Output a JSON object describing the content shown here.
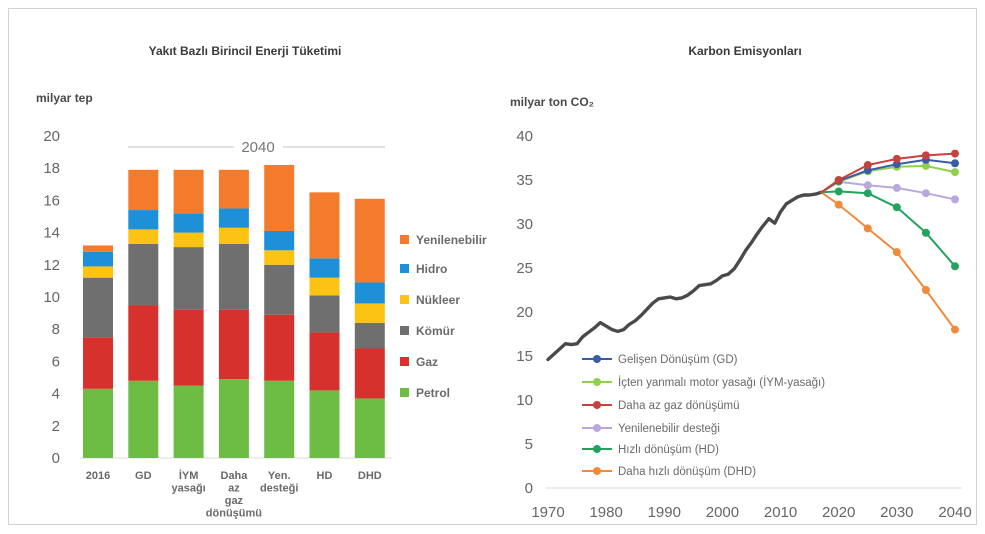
{
  "chart_data": [
    {
      "type": "bar",
      "stacked": true,
      "title": "Yakıt Bazlı Birincil Enerji Tüketimi",
      "ylabel": "milyar tep",
      "ylim": [
        0,
        20
      ],
      "yticks": [
        0,
        2,
        4,
        6,
        8,
        10,
        12,
        14,
        16,
        18,
        20
      ],
      "annotation": "2040",
      "legend_position": "right",
      "categories": [
        "2016",
        "GD",
        "İYM yasağı",
        "Daha az gaz dönüşümü",
        "Yen. desteği",
        "HD",
        "DHD"
      ],
      "series": [
        {
          "name": "Petrol",
          "color": "#6dbd45",
          "values": [
            4.3,
            4.8,
            4.5,
            4.9,
            4.8,
            4.2,
            3.7
          ]
        },
        {
          "name": "Gaz",
          "color": "#d7312d",
          "values": [
            3.2,
            4.7,
            4.7,
            4.3,
            4.1,
            3.6,
            3.1
          ]
        },
        {
          "name": "Kömür",
          "color": "#6f6f6f",
          "values": [
            3.7,
            3.8,
            3.9,
            4.1,
            3.1,
            2.3,
            1.6
          ]
        },
        {
          "name": "Nükleer",
          "color": "#fdc312",
          "values": [
            0.7,
            0.9,
            0.9,
            1.0,
            0.9,
            1.1,
            1.2
          ]
        },
        {
          "name": "Hidro",
          "color": "#1e90d8",
          "values": [
            0.9,
            1.2,
            1.2,
            1.2,
            1.2,
            1.2,
            1.3
          ]
        },
        {
          "name": "Yenilenebilir",
          "color": "#f47b2c",
          "values": [
            0.4,
            2.5,
            2.7,
            2.4,
            4.1,
            4.1,
            5.2
          ]
        }
      ]
    },
    {
      "type": "line",
      "title": "Karbon Emisyonları",
      "ylabel": "milyar ton CO₂",
      "xlim": [
        1970,
        2040
      ],
      "ylim": [
        0,
        40
      ],
      "xticks": [
        1970,
        1980,
        1990,
        2000,
        2010,
        2020,
        2030,
        2040
      ],
      "yticks": [
        0,
        5,
        10,
        15,
        20,
        25,
        30,
        35,
        40
      ],
      "legend_position": "bottom-left",
      "series": [
        {
          "color": "#4a4a4a",
          "markers": false,
          "x": [
            1970,
            1971,
            1972,
            1973,
            1974,
            1975,
            1976,
            1977,
            1978,
            1979,
            1980,
            1981,
            1982,
            1983,
            1984,
            1985,
            1986,
            1987,
            1988,
            1989,
            1990,
            1991,
            1992,
            1993,
            1994,
            1995,
            1996,
            1997,
            1998,
            1999,
            2000,
            2001,
            2002,
            2003,
            2004,
            2005,
            2006,
            2007,
            2008,
            2009,
            2010,
            2011,
            2012,
            2013,
            2014,
            2015,
            2016,
            2017
          ],
          "y": [
            14.6,
            15.2,
            15.8,
            16.4,
            16.3,
            16.4,
            17.2,
            17.7,
            18.2,
            18.8,
            18.4,
            18.0,
            17.8,
            18.0,
            18.6,
            19.0,
            19.6,
            20.3,
            21.0,
            21.5,
            21.6,
            21.7,
            21.5,
            21.6,
            21.9,
            22.4,
            23.0,
            23.1,
            23.2,
            23.6,
            24.1,
            24.3,
            24.9,
            25.9,
            27.0,
            27.9,
            28.9,
            29.8,
            30.6,
            30.1,
            31.4,
            32.3,
            32.7,
            33.1,
            33.3,
            33.3,
            33.4,
            33.6
          ]
        },
        {
          "name": "Gelişen Dönüşüm (GD)",
          "color": "#3b5ba9",
          "markers": true,
          "x": [
            2017,
            2020,
            2025,
            2030,
            2035,
            2040
          ],
          "y": [
            33.6,
            34.9,
            36.1,
            36.8,
            37.3,
            36.9
          ]
        },
        {
          "name": "İçten yanmalı motor yasağı (İYM-yasağı)",
          "color": "#8fd14c",
          "markers": true,
          "x": [
            2017,
            2020,
            2025,
            2030,
            2035,
            2040
          ],
          "y": [
            33.6,
            34.8,
            36.0,
            36.5,
            36.6,
            35.9
          ]
        },
        {
          "name": "Daha az gaz dönüşümü",
          "color": "#c8413d",
          "markers": true,
          "x": [
            2017,
            2020,
            2025,
            2030,
            2035,
            2040
          ],
          "y": [
            33.6,
            35.0,
            36.7,
            37.4,
            37.8,
            38.0
          ]
        },
        {
          "name": "Yenilenebilir desteği",
          "color": "#b9a8db",
          "markers": true,
          "x": [
            2017,
            2020,
            2025,
            2030,
            2035,
            2040
          ],
          "y": [
            33.6,
            34.8,
            34.4,
            34.1,
            33.5,
            32.8
          ]
        },
        {
          "name": "Hızlı dönüşüm (HD)",
          "color": "#22a35e",
          "markers": true,
          "x": [
            2017,
            2020,
            2025,
            2030,
            2035,
            2040
          ],
          "y": [
            33.6,
            33.7,
            33.5,
            31.9,
            29.0,
            25.2
          ]
        },
        {
          "name": "Daha hızlı dönüşüm (DHD)",
          "color": "#f28a3c",
          "markers": true,
          "x": [
            2017,
            2020,
            2025,
            2030,
            2035,
            2040
          ],
          "y": [
            33.6,
            32.2,
            29.5,
            26.8,
            22.5,
            18.0
          ]
        }
      ]
    }
  ]
}
